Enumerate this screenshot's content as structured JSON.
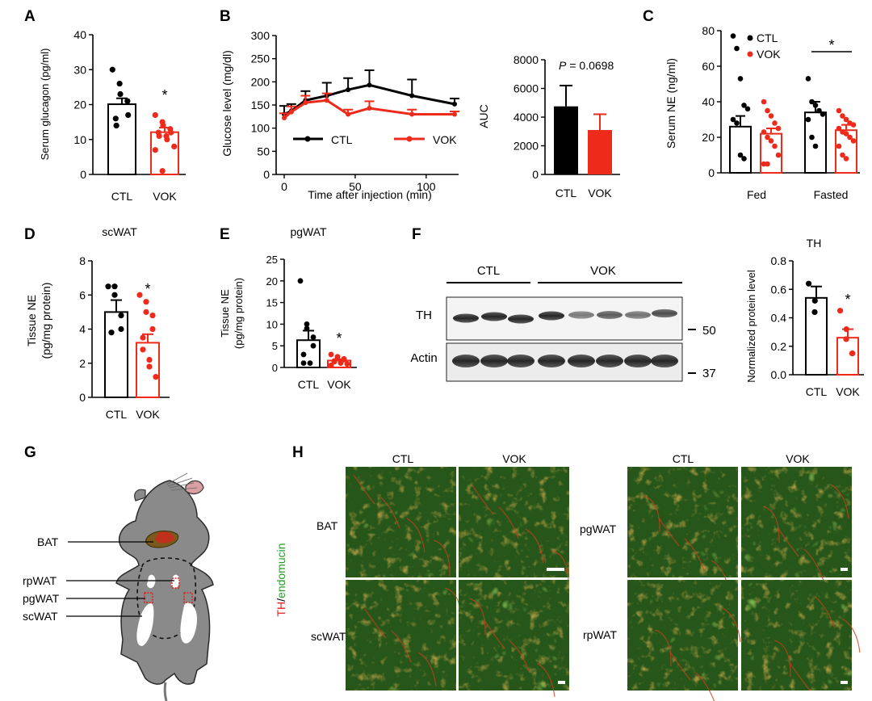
{
  "colors": {
    "ctl": "#000000",
    "vok": "#ee2a1b",
    "mic_green": "#3d8a1a",
    "mic_red": "#c24020"
  },
  "panels": {
    "A": {
      "letter": "A",
      "ylabel": "Serum glucagon (pg/ml)",
      "yticks": [
        "0",
        "10",
        "20",
        "30",
        "40"
      ],
      "xticks": [
        "CTL",
        "VOK"
      ],
      "star": "*"
    },
    "B": {
      "letter": "B",
      "ylabel": "Glucose level (mg/dl)",
      "xlabel": "Time after injection (min)",
      "yticks": [
        "0",
        "50",
        "100",
        "150",
        "200",
        "250",
        "300"
      ],
      "xticks": [
        "0",
        "50",
        "100"
      ],
      "legend": [
        "CTL",
        "VOK"
      ],
      "auc_ylabel": "AUC",
      "auc_yticks": [
        "0",
        "2000",
        "4000",
        "6000",
        "8000"
      ],
      "auc_xticks": [
        "CTL",
        "VOK"
      ],
      "auc_p_italic": "P",
      "auc_p_value": "= 0.0698"
    },
    "C": {
      "letter": "C",
      "ylabel": "Serum NE (ng/ml)",
      "yticks": [
        "0",
        "20",
        "40",
        "60",
        "80"
      ],
      "groups": [
        "Fed",
        "Fasted"
      ],
      "legend": [
        "CTL",
        "VOK"
      ],
      "star": "*"
    },
    "D": {
      "letter": "D",
      "title": "scWAT",
      "ylabel1": "Tissue NE",
      "ylabel2": "(pg/mg protein)",
      "yticks": [
        "0",
        "2",
        "4",
        "6",
        "8"
      ],
      "xticks": [
        "CTL",
        "VOK"
      ],
      "star": "*"
    },
    "E": {
      "letter": "E",
      "title": "pgWAT",
      "ylabel1": "Tissue NE",
      "ylabel2": "(pg/mg protein)",
      "yticks": [
        "0",
        "5",
        "10",
        "15",
        "20",
        "25"
      ],
      "xticks": [
        "CTL",
        "VOK"
      ],
      "star": "*"
    },
    "F": {
      "letter": "F",
      "blot_groups": [
        "CTL",
        "VOK"
      ],
      "blot_rows": [
        "TH",
        "Actin"
      ],
      "markers": [
        "50",
        "37"
      ],
      "chart_title": "TH",
      "ylabel": "Normalized protein level",
      "yticks": [
        "0.0",
        "0.2",
        "0.4",
        "0.6",
        "0.8"
      ],
      "xticks": [
        "CTL",
        "VOK"
      ],
      "star": "*"
    },
    "G": {
      "letter": "G",
      "labels": [
        "BAT",
        "rpWAT",
        "pgWAT",
        "scWAT"
      ]
    },
    "H": {
      "letter": "H",
      "cols": [
        "CTL",
        "VOK",
        "CTL",
        "VOK"
      ],
      "rows_left": [
        "BAT",
        "scWAT"
      ],
      "rows_right": [
        "pgWAT",
        "rpWAT"
      ],
      "stain_th": "TH",
      "stain_slash": "/",
      "stain_endo": "endomucin"
    }
  },
  "chart_data": [
    {
      "panel": "A",
      "type": "bar",
      "categories": [
        "CTL",
        "VOK"
      ],
      "values": [
        20.1,
        12.1
      ],
      "sem": [
        1.7,
        1.3
      ],
      "ylim": [
        0,
        40
      ],
      "ylabel": "Serum glucagon (pg/ml)",
      "points": [
        [
          30,
          26,
          23,
          21,
          17,
          16,
          14
        ],
        [
          17,
          15,
          14,
          13,
          12,
          12,
          11,
          11,
          10,
          8,
          7,
          1
        ]
      ]
    },
    {
      "panel": "B",
      "type": "line",
      "x": [
        0,
        5,
        15,
        30,
        45,
        60,
        90,
        120
      ],
      "xlim": [
        0,
        120
      ],
      "ylim": [
        0,
        300
      ],
      "xlabel": "Time after injection (min)",
      "ylabel": "Glucose level (mg/dl)",
      "series": [
        {
          "name": "CTL",
          "values": [
            130,
            137,
            160,
            170,
            183,
            193,
            170,
            152
          ],
          "sem": [
            18,
            15,
            20,
            28,
            25,
            32,
            35,
            12
          ]
        },
        {
          "name": "VOK",
          "values": [
            122,
            135,
            155,
            160,
            130,
            143,
            130,
            130
          ],
          "sem": [
            10,
            12,
            15,
            15,
            10,
            15,
            10,
            6
          ]
        }
      ]
    },
    {
      "panel": "B-AUC",
      "type": "bar",
      "categories": [
        "CTL",
        "VOK"
      ],
      "values": [
        4750,
        3100
      ],
      "sem": [
        1450,
        1100
      ],
      "ylim": [
        0,
        8000
      ],
      "ylabel": "AUC",
      "annotation": "P = 0.0698"
    },
    {
      "panel": "C",
      "type": "bar",
      "groups": [
        "Fed",
        "Fasted"
      ],
      "ylim": [
        0,
        80
      ],
      "ylabel": "Serum NE (ng/ml)",
      "series": [
        {
          "name": "CTL",
          "values": [
            26,
            34
          ],
          "sem": [
            6,
            6
          ],
          "points": [
            [
              77,
              70,
              53,
              38,
              36,
              30,
              28,
              10,
              8
            ],
            [
              53,
              40,
              38,
              35,
              33,
              30,
              20,
              15
            ]
          ]
        },
        {
          "name": "VOK",
          "values": [
            22,
            24
          ],
          "sem": [
            3,
            3
          ],
          "points": [
            [
              40,
              35,
              32,
              28,
              25,
              23,
              20,
              18,
              15,
              10,
              5,
              5
            ],
            [
              35,
              32,
              30,
              28,
              27,
              25,
              23,
              22,
              20,
              18,
              15,
              10,
              8
            ]
          ]
        }
      ]
    },
    {
      "panel": "D",
      "type": "bar",
      "categories": [
        "CTL",
        "VOK"
      ],
      "values": [
        5.0,
        3.2
      ],
      "sem": [
        0.7,
        0.5
      ],
      "ylim": [
        0,
        8
      ],
      "ylabel": "Tissue NE (pg/mg protein)",
      "points": [
        [
          6.5,
          6.5,
          6.0,
          4.8,
          4.0,
          3.8
        ],
        [
          6.0,
          5.6,
          5.0,
          4.8,
          4.0,
          3.5,
          2.8,
          2.2,
          1.8,
          1.2
        ]
      ]
    },
    {
      "panel": "E",
      "type": "bar",
      "categories": [
        "CTL",
        "VOK"
      ],
      "values": [
        6.3,
        1.6
      ],
      "sem": [
        2.2,
        0.3
      ],
      "ylim": [
        0,
        25
      ],
      "ylabel": "Tissue NE (pg/mg protein)",
      "points": [
        [
          20,
          10,
          9,
          7,
          5,
          3,
          1,
          1
        ],
        [
          3,
          2.5,
          2,
          2,
          1.8,
          1.5,
          1.3,
          1.2,
          1,
          0.8,
          0.5
        ]
      ]
    },
    {
      "panel": "F",
      "type": "bar",
      "categories": [
        "CTL",
        "VOK"
      ],
      "values": [
        0.54,
        0.26
      ],
      "sem": [
        0.08,
        0.06
      ],
      "ylim": [
        0,
        0.8
      ],
      "ylabel": "Normalized protein level",
      "title": "TH",
      "points": [
        [
          0.64,
          0.52,
          0.44
        ],
        [
          0.45,
          0.32,
          0.25,
          0.15,
          0.15
        ]
      ]
    }
  ]
}
